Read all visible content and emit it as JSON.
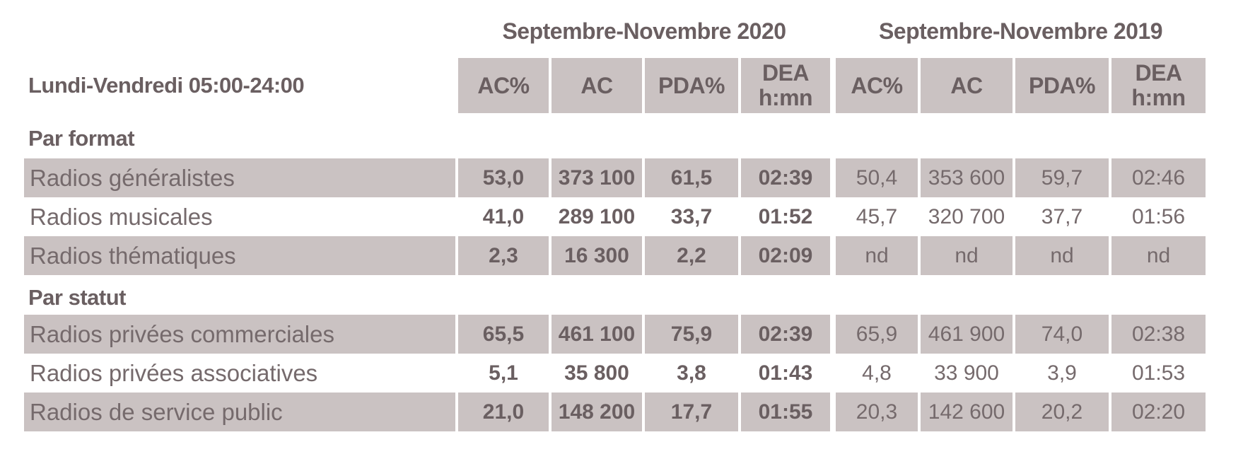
{
  "table": {
    "corner_label": "Lundi-Vendredi 05:00-24:00",
    "groups": [
      {
        "label": "Septembre-Novembre 2020",
        "columns": [
          "AC%",
          "AC",
          "PDA%",
          "DEA\nh:mn"
        ]
      },
      {
        "label": "Septembre-Novembre 2019",
        "columns": [
          "AC%",
          "AC",
          "PDA%",
          "DEA\nh:mn"
        ]
      }
    ],
    "sections": [
      {
        "title": "Par format",
        "rows": [
          {
            "label": "Radios généralistes",
            "v2020": [
              "53,0",
              "373 100",
              "61,5",
              "02:39"
            ],
            "v2019": [
              "50,4",
              "353 600",
              "59,7",
              "02:46"
            ]
          },
          {
            "label": "Radios musicales",
            "v2020": [
              "41,0",
              "289 100",
              "33,7",
              "01:52"
            ],
            "v2019": [
              "45,7",
              "320 700",
              "37,7",
              "01:56"
            ]
          },
          {
            "label": "Radios thématiques",
            "v2020": [
              "2,3",
              "16 300",
              "2,2",
              "02:09"
            ],
            "v2019": [
              "nd",
              "nd",
              "nd",
              "nd"
            ]
          }
        ]
      },
      {
        "title": "Par statut",
        "rows": [
          {
            "label": "Radios privées commerciales",
            "v2020": [
              "65,5",
              "461 100",
              "75,9",
              "02:39"
            ],
            "v2019": [
              "65,9",
              "461 900",
              "74,0",
              "02:38"
            ]
          },
          {
            "label": "Radios privées associatives",
            "v2020": [
              "5,1",
              "35 800",
              "3,8",
              "01:43"
            ],
            "v2019": [
              "4,8",
              "33 900",
              "3,9",
              "01:53"
            ]
          },
          {
            "label": "Radios de service public",
            "v2020": [
              "21,0",
              "148 200",
              "17,7",
              "01:55"
            ],
            "v2019": [
              "20,3",
              "142 600",
              "20,2",
              "02:20"
            ]
          }
        ]
      }
    ],
    "colors": {
      "cell_background": "#cac2c2",
      "text_regular": "#756a6c",
      "text_bold": "#6a5f61",
      "page_background": "#ffffff"
    }
  }
}
